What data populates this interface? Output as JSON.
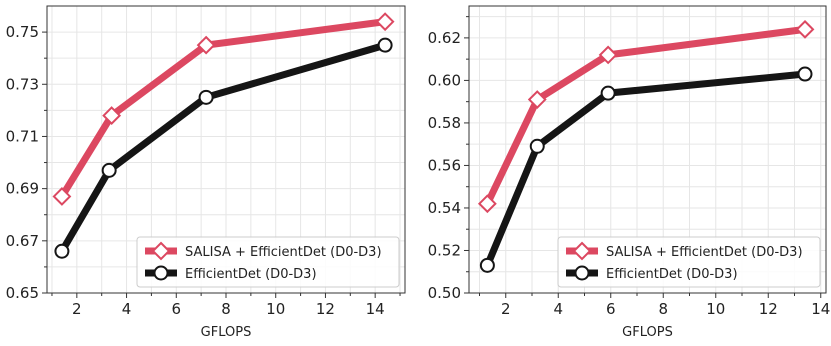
{
  "colors": {
    "salisa": "#dc4861",
    "efficientdet": "#151515",
    "grid": "#e6e6e6",
    "axes": "#333333"
  },
  "chart_data": [
    {
      "type": "line",
      "title": "",
      "xlabel": "GFLOPS",
      "ylabel": "",
      "xlim": [
        0.8,
        15.2
      ],
      "ylim": [
        0.65,
        0.76
      ],
      "xticks": [
        2,
        4,
        6,
        8,
        10,
        12,
        14
      ],
      "xtick_labels": [
        "2",
        "4",
        "6",
        "8",
        "10",
        "12",
        "14"
      ],
      "yticks": [
        0.65,
        0.67,
        0.69,
        0.71,
        0.73,
        0.75
      ],
      "ytick_labels": [
        "0.65",
        "0.67",
        "0.69",
        "0.71",
        "0.73",
        "0.75"
      ],
      "grid": true,
      "legend_position": "lower-right",
      "series": [
        {
          "name": "SALISA + EfficientDet (D0-D3)",
          "marker": "diamond",
          "x": [
            1.4,
            3.4,
            7.2,
            14.4
          ],
          "y": [
            0.687,
            0.718,
            0.745,
            0.754
          ]
        },
        {
          "name": "EfficientDet (D0-D3)",
          "marker": "circle",
          "x": [
            1.4,
            3.3,
            7.2,
            14.4
          ],
          "y": [
            0.666,
            0.697,
            0.725,
            0.745
          ]
        }
      ]
    },
    {
      "type": "line",
      "title": "",
      "xlabel": "GFLOPS",
      "ylabel": "",
      "xlim": [
        0.6,
        14.2
      ],
      "ylim": [
        0.5,
        0.635
      ],
      "xticks": [
        2,
        4,
        6,
        8,
        10,
        12,
        14
      ],
      "xtick_labels": [
        "2",
        "4",
        "6",
        "8",
        "10",
        "12",
        "14"
      ],
      "yticks": [
        0.5,
        0.52,
        0.54,
        0.56,
        0.58,
        0.6,
        0.62
      ],
      "ytick_labels": [
        "0.50",
        "0.52",
        "0.54",
        "0.56",
        "0.58",
        "0.60",
        "0.62"
      ],
      "grid": true,
      "legend_position": "lower-right",
      "series": [
        {
          "name": "SALISA + EfficientDet (D0-D3)",
          "marker": "diamond",
          "x": [
            1.3,
            3.2,
            5.9,
            13.4
          ],
          "y": [
            0.542,
            0.591,
            0.612,
            0.624
          ]
        },
        {
          "name": "EfficientDet (D0-D3)",
          "marker": "circle",
          "x": [
            1.3,
            3.2,
            5.9,
            13.4
          ],
          "y": [
            0.513,
            0.569,
            0.594,
            0.603
          ]
        }
      ]
    }
  ]
}
